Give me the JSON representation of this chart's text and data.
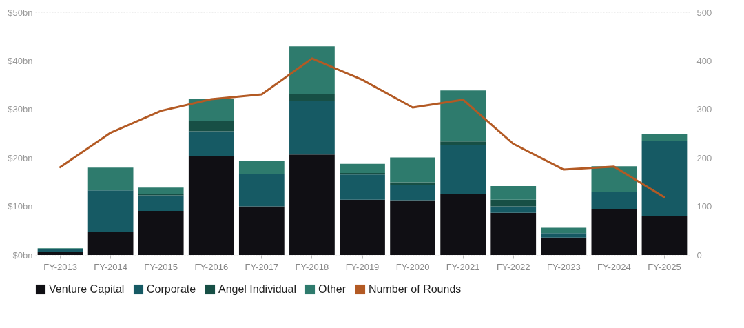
{
  "chart_data": {
    "type": "bar",
    "stacked": true,
    "categories": [
      "FY-2013",
      "FY-2014",
      "FY-2015",
      "FY-2016",
      "FY-2017",
      "FY-2018",
      "FY-2019",
      "FY-2020",
      "FY-2021",
      "FY-2022",
      "FY-2023",
      "FY-2024",
      "FY-2025"
    ],
    "series": [
      {
        "name": "Venture Capital",
        "color": "#100f14",
        "values": [
          0.7,
          4.8,
          9.1,
          20.4,
          10.0,
          20.7,
          11.4,
          11.3,
          12.6,
          8.7,
          3.6,
          9.5,
          8.1
        ]
      },
      {
        "name": "Corporate",
        "color": "#165a64",
        "values": [
          0.5,
          8.5,
          3.2,
          5.1,
          6.7,
          11.0,
          5.2,
          3.2,
          10.0,
          1.3,
          0.9,
          3.5,
          15.4
        ]
      },
      {
        "name": "Angel Individual",
        "color": "#174f45",
        "values": [
          0,
          0,
          0.2,
          2.2,
          0,
          1.4,
          0.3,
          0.5,
          0.8,
          1.4,
          0,
          0,
          0
        ]
      },
      {
        "name": "Other",
        "color": "#2e7b6d",
        "values": [
          0.2,
          4.7,
          1.4,
          4.4,
          2.7,
          9.9,
          1.9,
          5.1,
          10.5,
          2.8,
          1.1,
          5.3,
          1.4
        ]
      },
      {
        "name": "Number of Rounds",
        "color": "#b35a24",
        "type": "line",
        "axis": "y2",
        "values": [
          181,
          252,
          297,
          321,
          331,
          405,
          361,
          304,
          320,
          229,
          176,
          182,
          119
        ]
      }
    ],
    "ylim": [
      0,
      50
    ],
    "yticks": [
      {
        "value": 0,
        "label": "$0bn"
      },
      {
        "value": 10,
        "label": "$10bn"
      },
      {
        "value": 20,
        "label": "$20bn"
      },
      {
        "value": 30,
        "label": "$30bn"
      },
      {
        "value": 40,
        "label": "$40bn"
      },
      {
        "value": 50,
        "label": "$50bn"
      }
    ],
    "y2lim": [
      0,
      500
    ],
    "y2ticks": [
      0,
      100,
      200,
      300,
      400,
      500
    ],
    "grid": "y",
    "legend": "bottom left"
  }
}
